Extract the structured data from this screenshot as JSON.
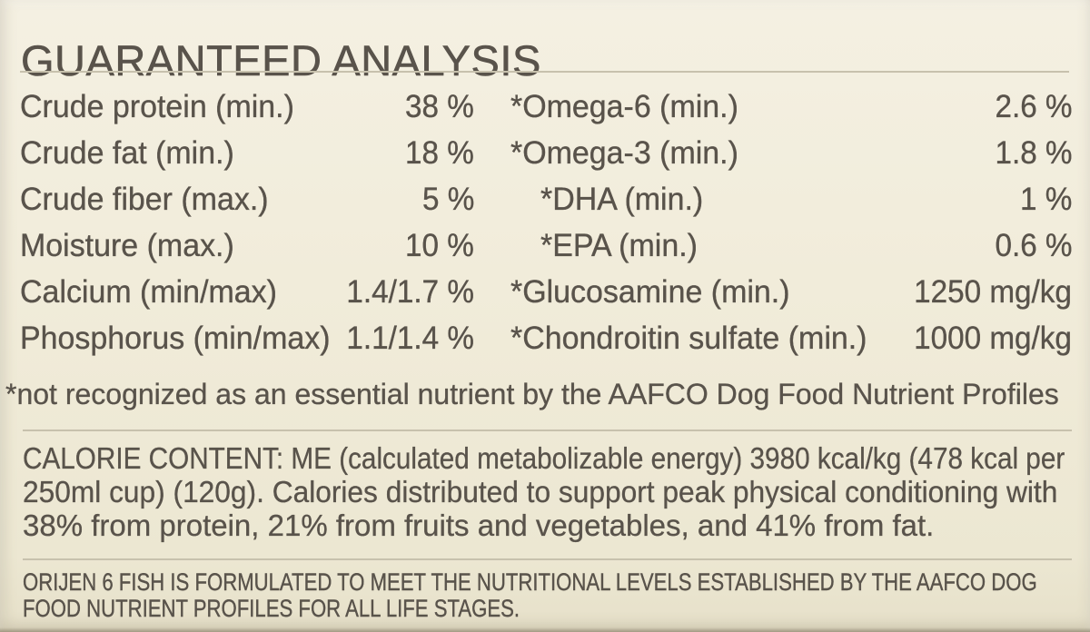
{
  "label": {
    "title": "GUARANTEED ANALYSIS",
    "nutrients": {
      "left": [
        {
          "label": "Crude protein (min.)",
          "value": "38 %"
        },
        {
          "label": "Crude fat (min.)",
          "value": "18 %"
        },
        {
          "label": "Crude fiber (max.)",
          "value": "5 %"
        },
        {
          "label": "Moisture (max.)",
          "value": "10 %"
        },
        {
          "label": "Calcium (min/max)",
          "value": "1.4/1.7 %"
        },
        {
          "label": "Phosphorus (min/max)",
          "value": "1.1/1.4 %"
        }
      ],
      "right": [
        {
          "label": "*Omega-6 (min.)",
          "value": "2.6 %"
        },
        {
          "label": "*Omega-3 (min.)",
          "value": "1.8 %"
        },
        {
          "label": "*DHA (min.)",
          "value": "1 %"
        },
        {
          "label": "*EPA (min.)",
          "value": "0.6 %"
        },
        {
          "label": "*Glucosamine (min.)",
          "value": "1250 mg/kg"
        },
        {
          "label": "*Chondroitin sulfate (min.)",
          "value": "1000 mg/kg"
        }
      ]
    },
    "footnote": "*not recognized as an essential nutrient by the AAFCO Dog Food Nutrient Profiles",
    "calorie_content": {
      "lines": [
        "CALORIE CONTENT: ME (calculated metabolizable energy) 3980 kcal/kg (478 kcal per",
        "250ml cup) (120g). Calories distributed to support peak physical conditioning with",
        "38% from protein, 21% from fruits and vegetables, and 41% from fat."
      ]
    },
    "aafco_statement": {
      "lines": [
        "ORIJEN 6 FISH IS FORMULATED TO MEET THE NUTRITIONAL LEVELS ESTABLISHED BY THE AAFCO DOG",
        "FOOD NUTRIENT PROFILES FOR ALL LIFE STAGES."
      ]
    },
    "colors": {
      "background": "#f1ecda",
      "text": "#59534b",
      "divider": "#c7c1ad"
    }
  }
}
